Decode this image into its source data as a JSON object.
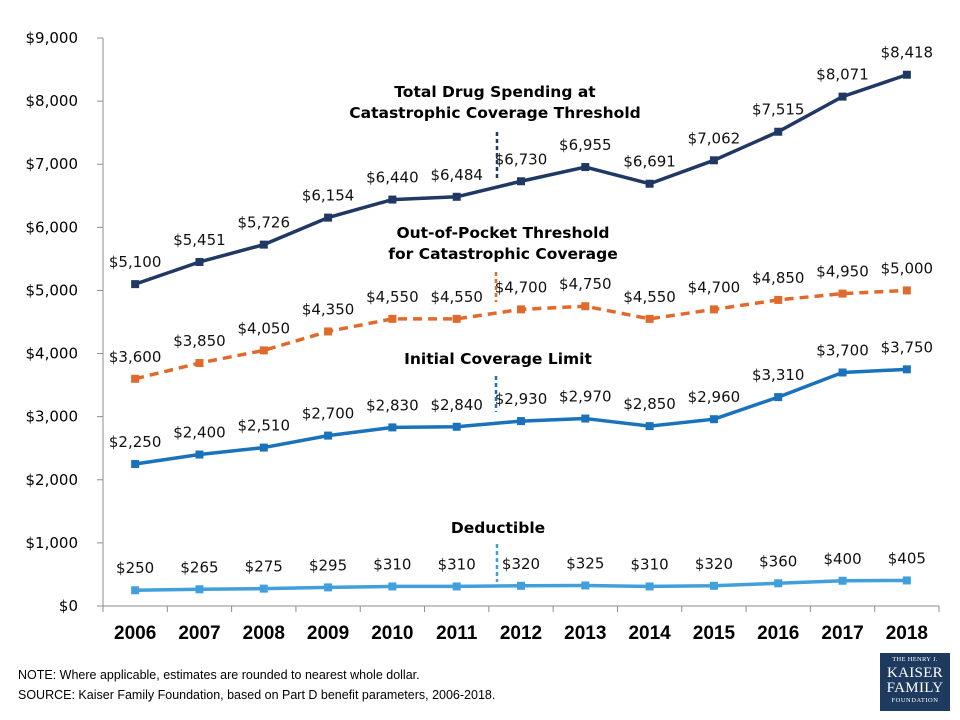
{
  "chart_data": {
    "type": "line",
    "categories": [
      "2006",
      "2007",
      "2008",
      "2009",
      "2010",
      "2011",
      "2012",
      "2013",
      "2014",
      "2015",
      "2016",
      "2017",
      "2018"
    ],
    "ylim": [
      0,
      9000
    ],
    "y_ticks": [
      "$0",
      "$1,000",
      "$2,000",
      "$3,000",
      "$4,000",
      "$5,000",
      "$6,000",
      "$7,000",
      "$8,000",
      "$9,000"
    ],
    "grid": false,
    "legend": "inline labels",
    "series": [
      {
        "name": "Total Drug Spending at Catastrophic Coverage Threshold",
        "name_lines": [
          "Total Drug Spending at",
          "Catastrophic  Coverage Threshold"
        ],
        "color": "#1f3864",
        "dashed": false,
        "values": [
          5100,
          5451,
          5726,
          6154,
          6440,
          6484,
          6730,
          6955,
          6691,
          7062,
          7515,
          8071,
          8418
        ],
        "labels": [
          "$5,100",
          "$5,451",
          "$5,726",
          "$6,154",
          "$6,440",
          "$6,484",
          "$6,730",
          "$6,955",
          "$6,691",
          "$7,062",
          "$7,515",
          "$8,071",
          "$8,418"
        ]
      },
      {
        "name": "Out-of-Pocket Threshold for Catastrophic Coverage",
        "name_lines": [
          "Out-of-Pocket Threshold",
          "for Catastrophic Coverage"
        ],
        "color": "#e06a2c",
        "dashed": true,
        "values": [
          3600,
          3850,
          4050,
          4350,
          4550,
          4550,
          4700,
          4750,
          4550,
          4700,
          4850,
          4950,
          5000
        ],
        "labels": [
          "$3,600",
          "$3,850",
          "$4,050",
          "$4,350",
          "$4,550",
          "$4,550",
          "$4,700",
          "$4,750",
          "$4,550",
          "$4,700",
          "$4,850",
          "$4,950",
          "$5,000"
        ]
      },
      {
        "name": "Initial Coverage Limit",
        "name_lines": [
          "Initial Coverage Limit"
        ],
        "color": "#1a72bb",
        "dashed": false,
        "values": [
          2250,
          2400,
          2510,
          2700,
          2830,
          2840,
          2930,
          2970,
          2850,
          2960,
          3310,
          3700,
          3750
        ],
        "labels": [
          "$2,250",
          "$2,400",
          "$2,510",
          "$2,700",
          "$2,830",
          "$2,840",
          "$2,930",
          "$2,970",
          "$2,850",
          "$2,960",
          "$3,310",
          "$3,700",
          "$3,750"
        ]
      },
      {
        "name": "Deductible",
        "name_lines": [
          "Deductible"
        ],
        "color": "#41a0db",
        "dashed": false,
        "values": [
          250,
          265,
          275,
          295,
          310,
          310,
          320,
          325,
          310,
          320,
          360,
          400,
          405
        ],
        "labels": [
          "$250",
          "$265",
          "$275",
          "$295",
          "$310",
          "$310",
          "$320",
          "$325",
          "$310",
          "$320",
          "$360",
          "$400",
          "$405"
        ]
      }
    ]
  },
  "footer": {
    "note": "NOTE: Where applicable, estimates are rounded to nearest whole dollar.",
    "source": "SOURCE: Kaiser Family Foundation, based on Part D benefit parameters, 2006-2018."
  },
  "logo": {
    "line1": "THE HENRY J.",
    "line2": "KAISER",
    "line3": "FAMILY",
    "line4": "FOUNDATION"
  }
}
